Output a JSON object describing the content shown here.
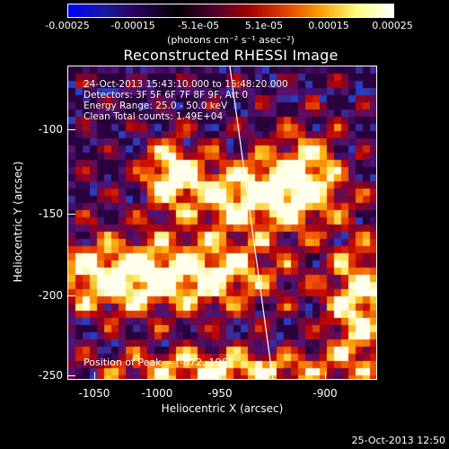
{
  "colorbar": {
    "tick_labels": [
      "-0.00025",
      "-0.00015",
      "-5.1e-05",
      "5.1e-05",
      "0.00015",
      "0.00025"
    ],
    "unit_label": "(photons cm⁻² s⁻¹ asec⁻²)",
    "colors": [
      "#0000ff",
      "#1a1aa0",
      "#2a0050",
      "#000000",
      "#4a0030",
      "#a00000",
      "#e04000",
      "#ffa000",
      "#ffff80",
      "#ffffff"
    ]
  },
  "title": "Reconstructed RHESSI Image",
  "annotations": {
    "time_range": "24-Oct-2013 15:43:10.000 to 15:48:20.000",
    "detectors": "Detectors: 3F 5F 6F 7F 8F 9F, Att 0",
    "energy_range": "Energy Range: 25.0 - 50.0 keV",
    "algorithm": "Clean     Total counts: 1.49E+04",
    "peak_position": "Position of Peak = [-872,-196]"
  },
  "axes": {
    "x_label": "Heliocentric X (arcsec)",
    "y_label": "Heliocentric Y (arcsec)",
    "x_ticks": [
      "-1050",
      "-1000",
      "-950",
      "-900"
    ],
    "y_ticks": [
      "-100",
      "-150",
      "-200",
      "-250"
    ]
  },
  "timestamp": "25-Oct-2013 12:50"
}
